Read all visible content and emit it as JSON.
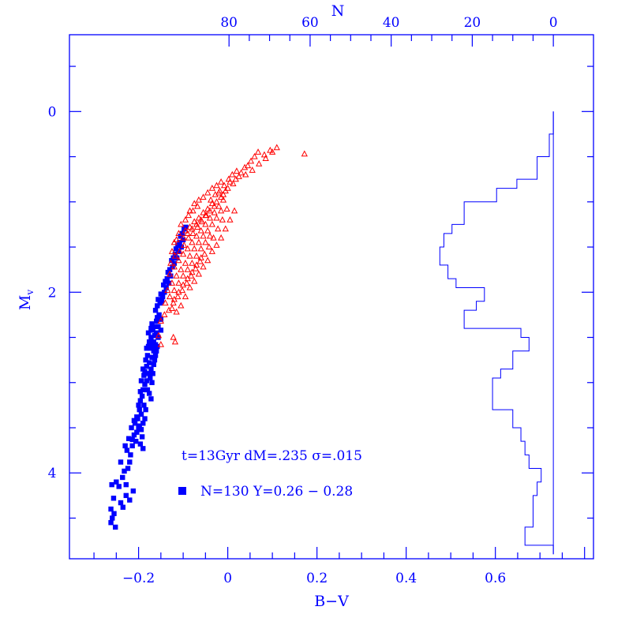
{
  "chart_data": {
    "type": "scatter",
    "xlabel": "B−V",
    "ylabel": "M",
    "ylabel_subscript": "v",
    "toplabel": "N",
    "xlim": [
      -0.355,
      0.82
    ],
    "ylim": [
      4.95,
      -0.85
    ],
    "x_ticks": [
      -0.2,
      0,
      0.2,
      0.4,
      0.6
    ],
    "x_tick_labels": [
      "−0.2",
      "0",
      "0.2",
      "0.4",
      "0.6"
    ],
    "y_ticks": [
      0,
      2,
      4
    ],
    "y_tick_labels": [
      "0",
      "2",
      "4"
    ],
    "top_ticks": [
      80,
      60,
      40,
      20,
      0
    ],
    "top_tick_labels": [
      "80",
      "60",
      "40",
      "20",
      "0"
    ],
    "top_axis_zero_at_x": 0.73,
    "top_axis_per_unit": 0.00909,
    "annotation_line1": "t=13Gyr dM=.235 σ=.015",
    "annotation_line2": "N=130  Y=0.26  −  0.28",
    "colors": {
      "axis": "#0000ff",
      "squares": "#0000ff",
      "triangles": "#ff0000",
      "histogram": "#0000ff"
    },
    "series": [
      {
        "marker": "square",
        "color": "#0000ff",
        "points": [
          [
            -0.262,
            4.55
          ],
          [
            -0.259,
            4.5
          ],
          [
            -0.255,
            4.45
          ],
          [
            -0.252,
            4.6
          ],
          [
            -0.262,
            4.4
          ],
          [
            -0.256,
            4.28
          ],
          [
            -0.26,
            4.13
          ],
          [
            -0.25,
            4.1
          ],
          [
            -0.244,
            4.15
          ],
          [
            -0.235,
            4.38
          ],
          [
            -0.24,
            4.33
          ],
          [
            -0.24,
            3.88
          ],
          [
            -0.232,
            3.98
          ],
          [
            -0.228,
            4.13
          ],
          [
            -0.224,
            3.95
          ],
          [
            -0.22,
            3.88
          ],
          [
            -0.226,
            3.75
          ],
          [
            -0.218,
            3.8
          ],
          [
            -0.214,
            3.7
          ],
          [
            -0.21,
            3.58
          ],
          [
            -0.214,
            3.63
          ],
          [
            -0.206,
            3.65
          ],
          [
            -0.204,
            3.55
          ],
          [
            -0.2,
            3.5
          ],
          [
            -0.208,
            3.45
          ],
          [
            -0.202,
            3.4
          ],
          [
            -0.198,
            3.48
          ],
          [
            -0.194,
            3.52
          ],
          [
            -0.192,
            3.6
          ],
          [
            -0.196,
            3.68
          ],
          [
            -0.19,
            3.73
          ],
          [
            -0.204,
            3.38
          ],
          [
            -0.198,
            3.3
          ],
          [
            -0.194,
            3.35
          ],
          [
            -0.19,
            3.45
          ],
          [
            -0.186,
            3.4
          ],
          [
            -0.2,
            3.25
          ],
          [
            -0.196,
            3.2
          ],
          [
            -0.192,
            3.15
          ],
          [
            -0.188,
            3.25
          ],
          [
            -0.184,
            3.3
          ],
          [
            -0.196,
            3.1
          ],
          [
            -0.19,
            3.08
          ],
          [
            -0.186,
            3.02
          ],
          [
            -0.194,
            2.98
          ],
          [
            -0.188,
            2.92
          ],
          [
            -0.182,
            2.98
          ],
          [
            -0.18,
            3.08
          ],
          [
            -0.186,
            2.88
          ],
          [
            -0.182,
            2.82
          ],
          [
            -0.178,
            2.9
          ],
          [
            -0.174,
            2.95
          ],
          [
            -0.17,
            3.0
          ],
          [
            -0.176,
            3.12
          ],
          [
            -0.172,
            3.18
          ],
          [
            -0.19,
            2.85
          ],
          [
            -0.184,
            2.75
          ],
          [
            -0.18,
            2.7
          ],
          [
            -0.176,
            2.78
          ],
          [
            -0.172,
            2.85
          ],
          [
            -0.168,
            2.9
          ],
          [
            -0.166,
            2.8
          ],
          [
            -0.17,
            2.72
          ],
          [
            -0.164,
            2.75
          ],
          [
            -0.162,
            2.7
          ],
          [
            -0.166,
            2.65
          ],
          [
            -0.16,
            2.65
          ],
          [
            -0.168,
            2.6
          ],
          [
            -0.174,
            2.62
          ],
          [
            -0.178,
            2.6
          ],
          [
            -0.182,
            2.62
          ],
          [
            -0.176,
            2.55
          ],
          [
            -0.172,
            2.5
          ],
          [
            -0.166,
            2.55
          ],
          [
            -0.162,
            2.58
          ],
          [
            -0.158,
            2.6
          ],
          [
            -0.164,
            2.48
          ],
          [
            -0.16,
            2.45
          ],
          [
            -0.156,
            2.5
          ],
          [
            -0.168,
            2.42
          ],
          [
            -0.17,
            2.35
          ],
          [
            -0.164,
            2.38
          ],
          [
            -0.16,
            2.32
          ],
          [
            -0.156,
            2.38
          ],
          [
            -0.15,
            2.42
          ],
          [
            -0.158,
            2.28
          ],
          [
            -0.154,
            2.25
          ],
          [
            -0.15,
            2.3
          ],
          [
            -0.162,
            2.2
          ],
          [
            -0.158,
            2.15
          ],
          [
            -0.152,
            2.12
          ],
          [
            -0.148,
            2.1
          ],
          [
            -0.156,
            2.08
          ],
          [
            -0.15,
            2.02
          ],
          [
            -0.146,
            2.05
          ],
          [
            -0.142,
            2.0
          ],
          [
            -0.138,
            1.95
          ],
          [
            -0.144,
            1.92
          ],
          [
            -0.14,
            1.88
          ],
          [
            -0.136,
            1.85
          ],
          [
            -0.132,
            1.9
          ],
          [
            -0.128,
            1.82
          ],
          [
            -0.134,
            1.78
          ],
          [
            -0.13,
            1.75
          ],
          [
            -0.124,
            1.72
          ],
          [
            -0.12,
            1.68
          ],
          [
            -0.126,
            1.65
          ],
          [
            -0.122,
            1.62
          ],
          [
            -0.118,
            1.58
          ],
          [
            -0.114,
            1.62
          ],
          [
            -0.11,
            1.55
          ],
          [
            -0.116,
            1.52
          ],
          [
            -0.112,
            1.48
          ],
          [
            -0.108,
            1.45
          ],
          [
            -0.104,
            1.5
          ],
          [
            -0.1,
            1.42
          ],
          [
            -0.106,
            1.38
          ],
          [
            -0.102,
            1.35
          ],
          [
            -0.098,
            1.3
          ],
          [
            -0.094,
            1.28
          ],
          [
            -0.236,
            4.05
          ],
          [
            -0.228,
            4.25
          ],
          [
            -0.22,
            4.3
          ],
          [
            -0.212,
            4.2
          ],
          [
            -0.23,
            3.7
          ],
          [
            -0.222,
            3.62
          ],
          [
            -0.216,
            3.5
          ],
          [
            -0.21,
            3.42
          ],
          [
            -0.178,
            2.45
          ],
          [
            -0.172,
            2.4
          ]
        ]
      },
      {
        "marker": "triangle",
        "color": "#ff0000",
        "points": [
          [
            0.172,
            0.47
          ],
          [
            0.11,
            0.4
          ],
          [
            0.095,
            0.43
          ],
          [
            0.082,
            0.48
          ],
          [
            0.068,
            0.45
          ],
          [
            0.06,
            0.5
          ],
          [
            0.052,
            0.55
          ],
          [
            0.045,
            0.6
          ],
          [
            0.038,
            0.62
          ],
          [
            0.03,
            0.68
          ],
          [
            0.025,
            0.72
          ],
          [
            0.018,
            0.75
          ],
          [
            0.012,
            0.8
          ],
          [
            0.005,
            0.78
          ],
          [
            0.0,
            0.85
          ],
          [
            -0.005,
            0.88
          ],
          [
            -0.01,
            0.92
          ],
          [
            -0.015,
            0.95
          ],
          [
            -0.02,
            0.9
          ],
          [
            -0.025,
            1.0
          ],
          [
            -0.03,
            1.05
          ],
          [
            -0.035,
            1.02
          ],
          [
            -0.04,
            1.1
          ],
          [
            -0.045,
            1.08
          ],
          [
            -0.05,
            1.15
          ],
          [
            -0.055,
            1.12
          ],
          [
            -0.06,
            1.2
          ],
          [
            -0.065,
            1.18
          ],
          [
            -0.07,
            1.25
          ],
          [
            -0.075,
            1.22
          ],
          [
            -0.08,
            1.3
          ],
          [
            -0.085,
            1.28
          ],
          [
            -0.09,
            1.35
          ],
          [
            -0.095,
            1.32
          ],
          [
            -0.1,
            1.4
          ],
          [
            -0.01,
            0.98
          ],
          [
            -0.02,
            1.05
          ],
          [
            -0.03,
            1.12
          ],
          [
            -0.04,
            1.18
          ],
          [
            -0.05,
            1.25
          ],
          [
            -0.06,
            1.32
          ],
          [
            -0.07,
            1.38
          ],
          [
            -0.08,
            1.45
          ],
          [
            -0.09,
            1.52
          ],
          [
            -0.1,
            1.58
          ],
          [
            -0.11,
            1.65
          ],
          [
            -0.12,
            1.72
          ],
          [
            -0.13,
            1.8
          ],
          [
            -0.015,
            1.1
          ],
          [
            -0.025,
            1.18
          ],
          [
            -0.035,
            1.25
          ],
          [
            -0.045,
            1.32
          ],
          [
            -0.055,
            1.38
          ],
          [
            -0.065,
            1.45
          ],
          [
            -0.075,
            1.52
          ],
          [
            -0.085,
            1.6
          ],
          [
            -0.095,
            1.68
          ],
          [
            -0.105,
            1.75
          ],
          [
            -0.115,
            1.82
          ],
          [
            -0.125,
            1.9
          ],
          [
            -0.135,
            1.98
          ],
          [
            -0.04,
            1.38
          ],
          [
            -0.05,
            1.45
          ],
          [
            -0.06,
            1.52
          ],
          [
            -0.07,
            1.6
          ],
          [
            -0.08,
            1.68
          ],
          [
            -0.09,
            1.75
          ],
          [
            -0.1,
            1.82
          ],
          [
            -0.11,
            1.9
          ],
          [
            -0.12,
            1.98
          ],
          [
            -0.13,
            2.05
          ],
          [
            -0.14,
            2.12
          ],
          [
            -0.06,
            1.62
          ],
          [
            -0.07,
            1.7
          ],
          [
            -0.08,
            1.78
          ],
          [
            -0.09,
            1.85
          ],
          [
            -0.1,
            1.92
          ],
          [
            -0.11,
            2.0
          ],
          [
            -0.12,
            2.08
          ],
          [
            -0.125,
            2.18
          ],
          [
            -0.115,
            2.22
          ],
          [
            -0.105,
            2.15
          ],
          [
            -0.095,
            2.05
          ],
          [
            -0.085,
            1.95
          ],
          [
            -0.075,
            1.88
          ],
          [
            -0.065,
            1.8
          ],
          [
            -0.055,
            1.72
          ],
          [
            -0.045,
            1.65
          ],
          [
            -0.035,
            1.55
          ],
          [
            -0.025,
            1.48
          ],
          [
            -0.015,
            1.4
          ],
          [
            -0.005,
            1.3
          ],
          [
            0.005,
            1.2
          ],
          [
            0.015,
            1.1
          ],
          [
            -0.002,
            1.08
          ],
          [
            -0.012,
            1.2
          ],
          [
            -0.022,
            1.3
          ],
          [
            -0.032,
            1.4
          ],
          [
            -0.042,
            1.5
          ],
          [
            -0.052,
            1.58
          ],
          [
            -0.062,
            1.66
          ],
          [
            -0.072,
            1.74
          ],
          [
            -0.082,
            1.82
          ],
          [
            -0.092,
            1.9
          ],
          [
            -0.102,
            1.98
          ],
          [
            -0.112,
            2.05
          ],
          [
            -0.122,
            2.12
          ],
          [
            -0.132,
            2.2
          ],
          [
            -0.142,
            2.25
          ],
          [
            -0.15,
            2.32
          ],
          [
            -0.15,
            2.58
          ],
          [
            -0.155,
            2.48
          ],
          [
            -0.118,
            2.55
          ],
          [
            -0.122,
            2.5
          ],
          [
            -0.085,
            1.1
          ],
          [
            -0.075,
            1.02
          ],
          [
            -0.065,
            0.98
          ],
          [
            -0.055,
            0.95
          ],
          [
            -0.045,
            0.9
          ],
          [
            -0.035,
            0.85
          ],
          [
            -0.025,
            0.82
          ],
          [
            -0.015,
            0.78
          ],
          [
            0.04,
            0.7
          ],
          [
            0.055,
            0.65
          ],
          [
            0.07,
            0.58
          ],
          [
            0.085,
            0.52
          ],
          [
            0.1,
            0.45
          ],
          [
            -0.098,
            1.48
          ],
          [
            -0.108,
            1.55
          ],
          [
            -0.118,
            1.6
          ],
          [
            -0.128,
            1.68
          ],
          [
            -0.088,
            1.4
          ],
          [
            -0.078,
            1.35
          ],
          [
            -0.068,
            1.28
          ],
          [
            -0.058,
            1.22
          ],
          [
            -0.048,
            1.15
          ],
          [
            -0.038,
            0.98
          ],
          [
            -0.028,
            0.92
          ],
          [
            -0.018,
            0.88
          ],
          [
            -0.008,
            0.82
          ],
          [
            0.002,
            0.75
          ],
          [
            0.01,
            0.7
          ],
          [
            0.02,
            0.66
          ],
          [
            -0.11,
            1.35
          ],
          [
            -0.105,
            1.25
          ],
          [
            -0.095,
            1.2
          ],
          [
            -0.088,
            1.15
          ],
          [
            -0.078,
            1.1
          ],
          [
            -0.068,
            1.05
          ],
          [
            -0.12,
            1.45
          ],
          [
            -0.125,
            1.55
          ],
          [
            -0.115,
            1.42
          ]
        ]
      }
    ],
    "histogram": {
      "orientation": "horizontal",
      "bin_edges": [
        0.0,
        0.25,
        0.5,
        0.75,
        0.85,
        1.0,
        1.25,
        1.35,
        1.5,
        1.7,
        1.85,
        1.95,
        2.1,
        2.2,
        2.4,
        2.5,
        2.65,
        2.85,
        2.95,
        3.05,
        3.3,
        3.5,
        3.65,
        3.8,
        3.95,
        4.1,
        4.25,
        4.4,
        4.6,
        4.8,
        4.9
      ],
      "counts": [
        0,
        1,
        4,
        9,
        14,
        22,
        25,
        27,
        28,
        26,
        24,
        17,
        19,
        22,
        8,
        6,
        10,
        13,
        15,
        15,
        10,
        8,
        7,
        6,
        3,
        4,
        5,
        5,
        7,
        0
      ]
    }
  }
}
